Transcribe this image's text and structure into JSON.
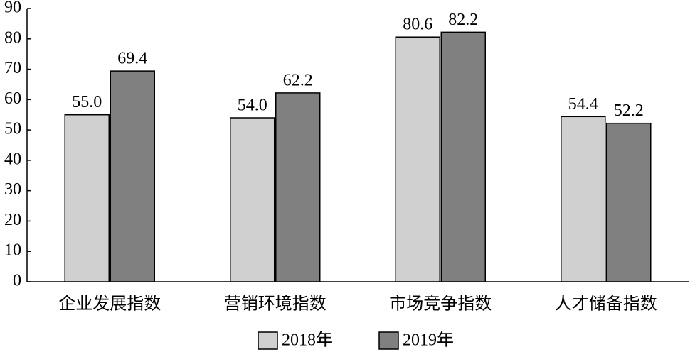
{
  "chart_data": {
    "type": "bar",
    "categories": [
      "企业发展指数",
      "营销环境指数",
      "市场竞争指数",
      "人才储备指数"
    ],
    "series": [
      {
        "name": "2018年",
        "color": "#d0d0d0",
        "values": [
          55,
          54,
          80.6,
          54.4
        ],
        "value_labels": [
          "55.0",
          "54.0",
          "80.6",
          "54.4"
        ]
      },
      {
        "name": "2019年",
        "color": "#808080",
        "values": [
          69.4,
          62.2,
          82.2,
          52.2
        ],
        "value_labels": [
          "69.4",
          "62.2",
          "82.2",
          "52.2"
        ]
      }
    ],
    "ylim": [
      0,
      90
    ],
    "yticks": [
      0,
      10,
      20,
      30,
      40,
      50,
      60,
      70,
      80,
      90
    ]
  }
}
